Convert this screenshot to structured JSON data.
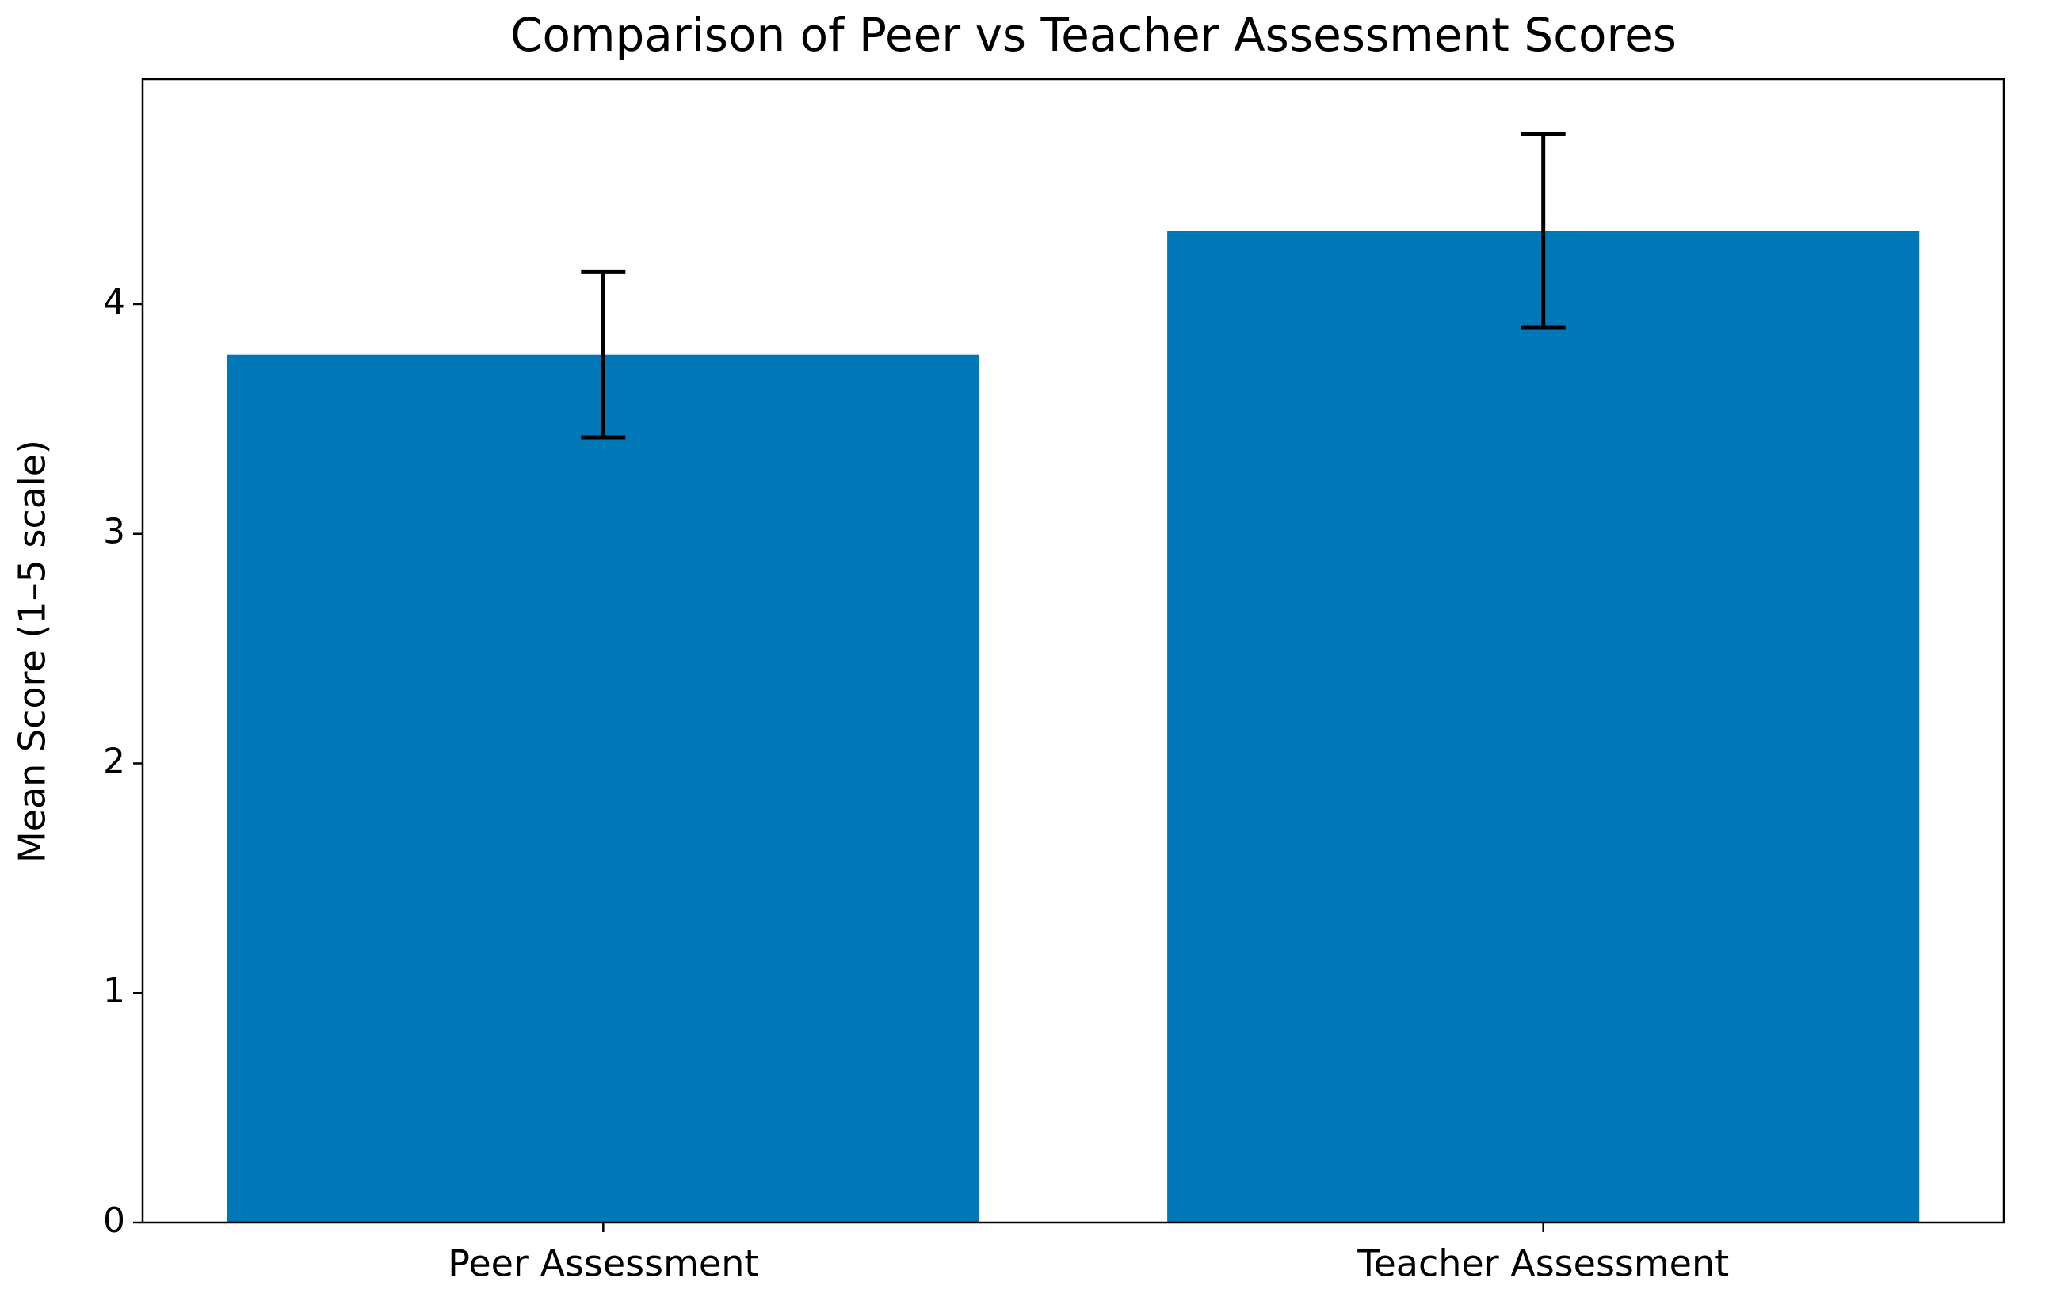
{
  "chart_data": {
    "type": "bar",
    "title": "Comparison of Peer vs Teacher Assessment Scores",
    "y_label": "Mean Score (1–5 scale)",
    "categories": [
      "Peer Assessment",
      "Teacher Assessment"
    ],
    "values": [
      3.78,
      4.32
    ],
    "errors": [
      0.36,
      0.42
    ],
    "color": "#0077b7",
    "ylim": [
      0,
      4.98
    ],
    "yticks": [
      0,
      1,
      2,
      3,
      4
    ],
    "grid": false
  }
}
